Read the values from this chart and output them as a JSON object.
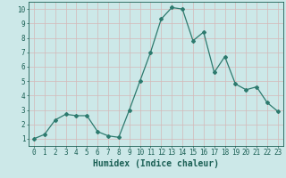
{
  "x": [
    0,
    1,
    2,
    3,
    4,
    5,
    6,
    7,
    8,
    9,
    10,
    11,
    12,
    13,
    14,
    15,
    16,
    17,
    18,
    19,
    20,
    21,
    22,
    23
  ],
  "y": [
    1,
    1.3,
    2.3,
    2.7,
    2.6,
    2.6,
    1.5,
    1.2,
    1.1,
    3.0,
    5.0,
    7.0,
    9.3,
    10.1,
    10.0,
    7.8,
    8.4,
    5.6,
    6.7,
    4.8,
    4.4,
    4.6,
    3.5,
    2.9
  ],
  "line_color": "#2d7a6e",
  "marker": "D",
  "marker_size": 2.0,
  "bg_color": "#cce8e8",
  "grid_color": "#b8d8d8",
  "xlabel": "Humidex (Indice chaleur)",
  "xlim": [
    -0.5,
    23.5
  ],
  "ylim": [
    0.5,
    10.5
  ],
  "yticks": [
    1,
    2,
    3,
    4,
    5,
    6,
    7,
    8,
    9,
    10
  ],
  "xticks": [
    0,
    1,
    2,
    3,
    4,
    5,
    6,
    7,
    8,
    9,
    10,
    11,
    12,
    13,
    14,
    15,
    16,
    17,
    18,
    19,
    20,
    21,
    22,
    23
  ],
  "tick_color": "#1a5f54",
  "label_fontsize": 7,
  "tick_fontsize": 5.5,
  "linewidth": 0.9
}
